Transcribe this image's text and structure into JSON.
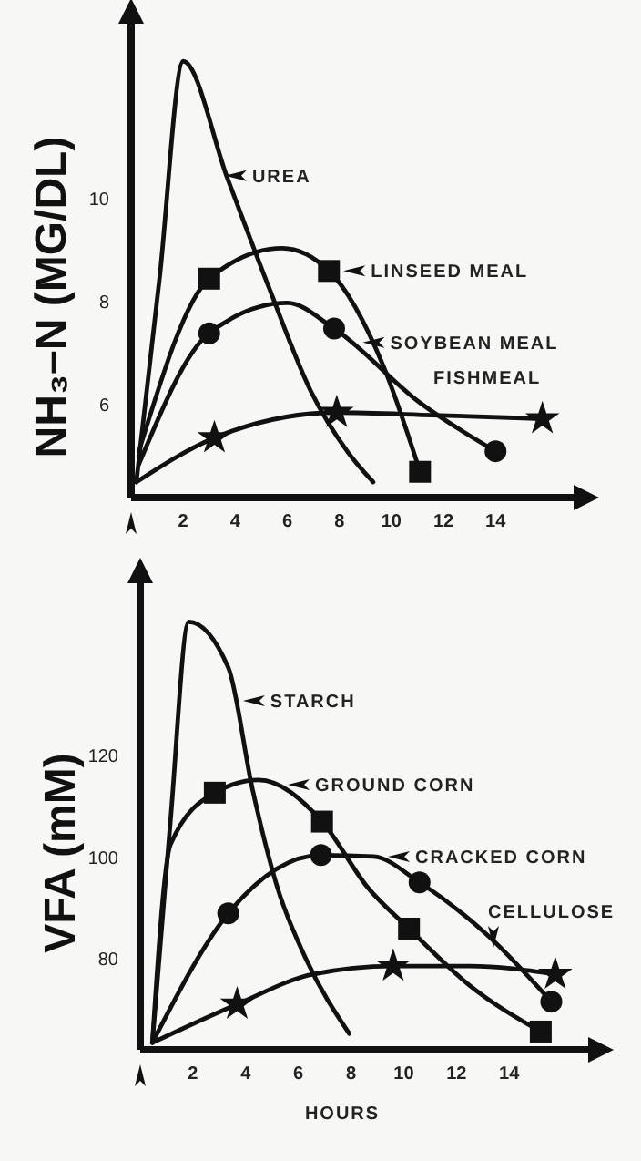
{
  "chart_data": [
    {
      "type": "line",
      "ylabel": "NH₃–N (MG/DL)",
      "xlim": [
        0,
        17
      ],
      "ylim": [
        4.2,
        13.4
      ],
      "xticks": [
        2,
        4,
        6,
        8,
        10,
        12,
        14
      ],
      "yticks": [
        6,
        8,
        10
      ],
      "grid": false,
      "line_style": "solid",
      "series": [
        {
          "color": "#111111",
          "x": [
            0.2,
            1.1,
            2.0,
            3.7,
            5.3,
            6.9,
            8.3,
            9.3
          ],
          "values": [
            4.5,
            8.5,
            12.67,
            10.4,
            8.27,
            6.27,
            5.1,
            4.5
          ]
        },
        {
          "color": "#111111",
          "x": [
            0.3,
            3.0,
            5.8,
            7.6,
            9.7,
            11.1
          ],
          "values": [
            5.1,
            8.45,
            9.04,
            8.6,
            6.74,
            4.7
          ]
        },
        {
          "color": "#111111",
          "x": [
            0.3,
            3.0,
            6.0,
            7.8,
            11.1,
            14.0
          ],
          "values": [
            4.85,
            7.39,
            7.98,
            7.48,
            6.04,
            5.1
          ]
        },
        {
          "color": "#111111",
          "x": [
            0.2,
            3.2,
            7.9,
            11.6,
            15.8
          ],
          "values": [
            4.5,
            5.36,
            5.85,
            5.8,
            5.73
          ]
        },
        {
          "type": "scatter",
          "marker": "square",
          "color": "#111111",
          "x": [
            3.0,
            7.6,
            11.1
          ],
          "values": [
            8.45,
            8.6,
            4.7
          ]
        },
        {
          "type": "scatter",
          "marker": "circle",
          "color": "#111111",
          "x": [
            3.0,
            7.8,
            14.0
          ],
          "values": [
            7.39,
            7.48,
            5.1
          ]
        },
        {
          "type": "scatter",
          "marker": "star",
          "color": "#111111",
          "x": [
            3.2,
            7.9,
            15.8
          ],
          "values": [
            5.36,
            5.85,
            5.73
          ]
        }
      ],
      "annotations": [
        {
          "text": "UREA",
          "x": 3.6,
          "y": 10.45
        },
        {
          "text": "LINSEED MEAL",
          "x": 7.6,
          "y": 8.6
        },
        {
          "text": "SOYBEAN MEAL",
          "x": 8.9,
          "y": 7.21
        },
        "FISHMEAL"
      ]
    },
    {
      "type": "line",
      "xlabel": "HOURS",
      "ylabel": "VFA (mM)",
      "xlim": [
        0,
        17
      ],
      "ylim": [
        62,
        154
      ],
      "xticks": [
        2,
        4,
        6,
        8,
        10,
        12,
        14
      ],
      "yticks": [
        80,
        100,
        120
      ],
      "grid": false,
      "line_style": "solid",
      "series": [
        {
          "color": "#111111",
          "x": [
            0.46,
            1.15,
            1.84,
            3.34,
            4.26,
            5.2,
            6.32,
            7.93
          ],
          "values": [
            63.4,
            107.3,
            146.4,
            137.4,
            113.4,
            94.1,
            79.6,
            65.2
          ]
        },
        {
          "color": "#111111",
          "x": [
            0.46,
            1.15,
            2.83,
            4.49,
            6.9,
            8.62,
            10.2,
            12.5,
            15.2
          ],
          "values": [
            63.4,
            102.5,
            112.7,
            115.2,
            107.0,
            94.1,
            85.9,
            74.7,
            65.6
          ]
        },
        {
          "color": "#111111",
          "x": [
            0.52,
            3.34,
            6.86,
            8.86,
            10.6,
            13.2,
            15.6
          ],
          "values": [
            64.0,
            88.9,
            100.4,
            100.1,
            95.0,
            84.5,
            71.5
          ]
        },
        {
          "color": "#111111",
          "x": [
            0.46,
            3.68,
            6.55,
            9.6,
            12.5,
            15.75
          ],
          "values": [
            63.4,
            71.0,
            76.9,
            78.5,
            78.5,
            76.9
          ]
        },
        {
          "type": "scatter",
          "marker": "square",
          "color": "#111111",
          "x": [
            2.83,
            6.9,
            10.2,
            15.2
          ],
          "values": [
            112.7,
            107.0,
            85.9,
            65.6
          ]
        },
        {
          "type": "scatter",
          "marker": "circle",
          "color": "#111111",
          "x": [
            3.34,
            6.86,
            10.6,
            15.6
          ],
          "values": [
            88.9,
            100.4,
            95.0,
            71.5
          ]
        },
        {
          "type": "scatter",
          "marker": "star",
          "color": "#111111",
          "x": [
            3.68,
            9.6,
            15.75
          ],
          "values": [
            71.0,
            78.5,
            76.9
          ]
        }
      ],
      "annotations": [
        {
          "text": "STARCH",
          "x": 3.9,
          "y": 130.8
        },
        {
          "text": "GROUND CORN",
          "x": 5.6,
          "y": 114.3
        },
        {
          "text": "CRACKED CORN",
          "x": 9.4,
          "y": 100.1
        },
        "CELLULOSE"
      ]
    }
  ]
}
